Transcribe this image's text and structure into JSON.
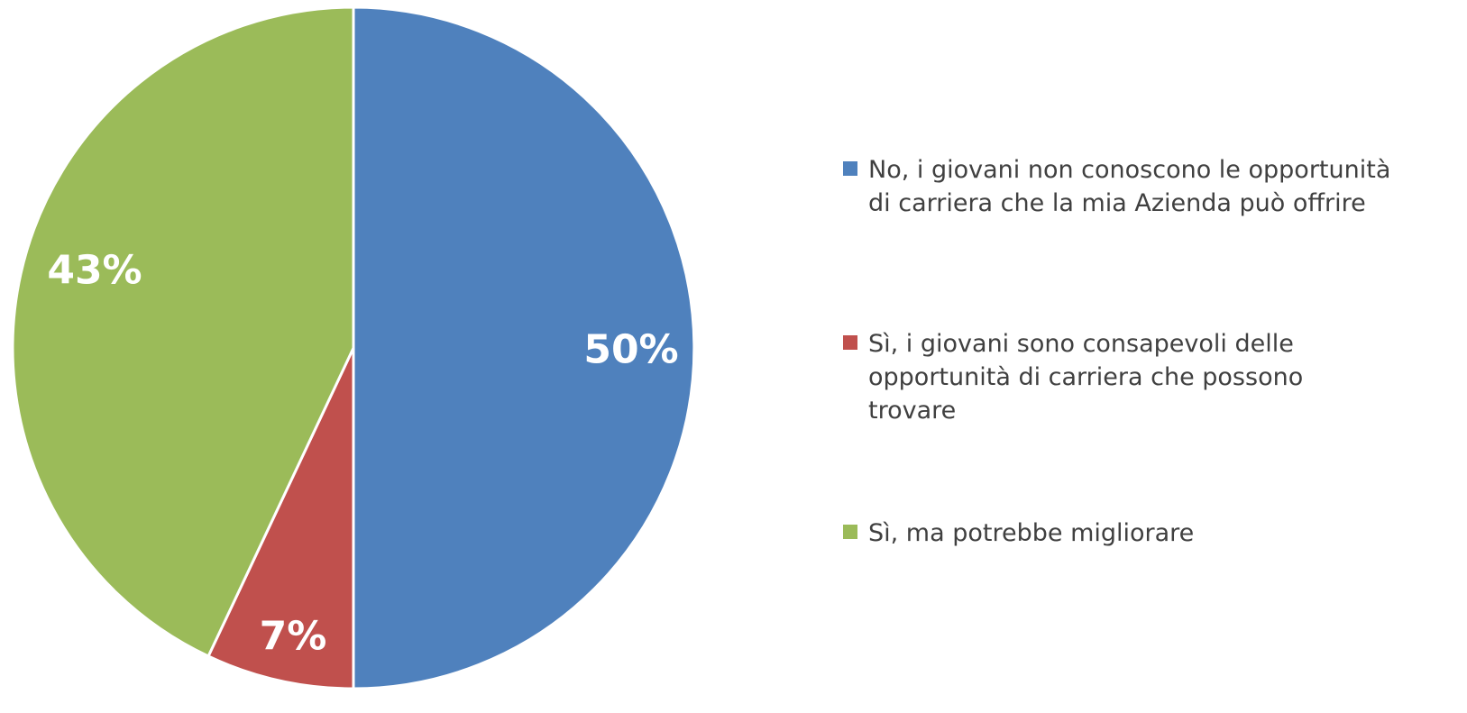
{
  "chart_data": {
    "type": "pie",
    "title": "",
    "slices": [
      {
        "label": "No, i giovani non conoscono le opportunità\ndi carriera che la mia Azienda può offrire",
        "value": 50,
        "display": "50%",
        "color": "#4F81BD"
      },
      {
        "label": "Sì, i giovani sono consapevoli delle\nopportunità di carriera che possono\ntrovare",
        "value": 7,
        "display": "7%",
        "color": "#C0504D"
      },
      {
        "label": "Sì, ma potrebbe migliorare",
        "value": 43,
        "display": "43%",
        "color": "#9BBB59"
      }
    ],
    "start_angle": "12 o'clock",
    "direction": "clockwise",
    "legend_position": "right"
  }
}
